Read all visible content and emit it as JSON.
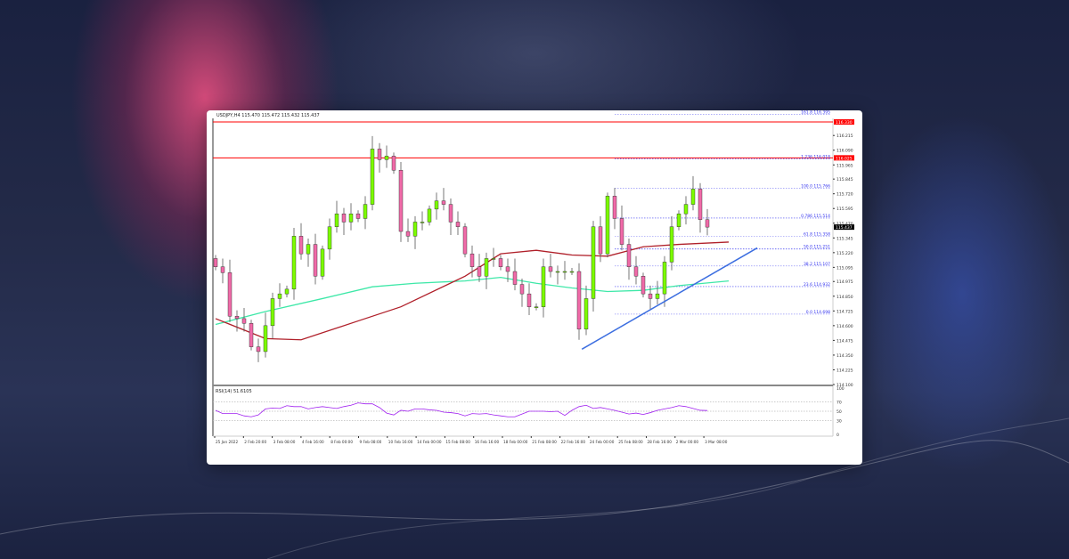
{
  "chart_data": {
    "type": "candlestick",
    "symbol_header": "USDJPY,H4  115.470 115.472 115.432 115.437",
    "close": [
      115.1,
      115.05,
      114.68,
      114.66,
      114.62,
      114.42,
      114.38,
      114.6,
      114.83,
      114.87,
      114.91,
      115.36,
      115.21,
      115.29,
      115.02,
      115.25,
      115.44,
      115.55,
      115.48,
      115.55,
      115.51,
      115.63,
      116.1,
      116.01,
      116.04,
      115.92,
      115.4,
      115.36,
      115.48,
      115.48,
      115.59,
      115.66,
      115.63,
      115.48,
      115.44,
      115.21,
      115.1,
      115.02,
      115.17,
      115.17,
      115.1,
      115.06,
      114.95,
      114.87,
      114.76,
      114.76,
      115.1,
      115.06,
      115.06,
      115.06,
      115.06,
      114.57,
      114.83,
      115.44,
      115.21,
      115.7,
      115.51,
      115.29,
      115.1,
      115.02,
      114.87,
      114.83,
      114.87,
      115.14,
      115.44,
      115.55,
      115.63,
      115.76,
      115.5,
      115.437
    ],
    "first_open": 115.17,
    "ma_red": {
      "index": [
        0,
        7,
        12,
        20,
        26,
        35,
        40,
        45,
        50,
        55,
        60,
        65,
        72
      ],
      "value": [
        114.66,
        114.49,
        114.48,
        114.64,
        114.76,
        115.02,
        115.21,
        115.24,
        115.2,
        115.19,
        115.27,
        115.29,
        115.31
      ]
    },
    "ma_green": {
      "index": [
        0,
        7,
        15,
        22,
        28,
        35,
        40,
        45,
        50,
        55,
        60,
        65,
        72
      ],
      "value": [
        114.61,
        114.72,
        114.83,
        114.93,
        114.96,
        114.98,
        115.01,
        114.96,
        114.92,
        114.89,
        114.9,
        114.94,
        114.98
      ]
    },
    "horizontal_lines": [
      {
        "price": 116.33,
        "label": "116.330",
        "color": "#ff0000"
      },
      {
        "price": 116.025,
        "label": "116.025",
        "color": "#ff0000"
      }
    ],
    "current_price": {
      "price": 115.437,
      "label": "115.437"
    },
    "fibonacci": [
      {
        "label": "161.8 116.395",
        "price": 116.395
      },
      {
        "label": "1.236 116.018",
        "price": 116.018
      },
      {
        "label": "100.0 115.766",
        "price": 115.766
      },
      {
        "label": "0.786 115.514",
        "price": 115.514
      },
      {
        "label": "61.8 115.358",
        "price": 115.358
      },
      {
        "label": "50.0 115.251",
        "price": 115.251
      },
      {
        "label": "38.2 115.107",
        "price": 115.107
      },
      {
        "label": "23.6 114.932",
        "price": 114.932
      },
      {
        "label": "0.0 114.698",
        "price": 114.698
      }
    ],
    "trendline": {
      "from": {
        "index": 51.4,
        "price": 114.4
      },
      "to": {
        "index": 76,
        "price": 115.26
      },
      "color": "#3c6ee0"
    },
    "y_ticks": [
      "116.215",
      "116.090",
      "115.965",
      "115.845",
      "115.720",
      "115.595",
      "115.470",
      "115.345",
      "115.220",
      "115.095",
      "114.975",
      "114.850",
      "114.725",
      "114.600",
      "114.475",
      "114.350",
      "114.225",
      "114.100"
    ],
    "ylim": [
      114.1,
      116.33
    ],
    "x_ticks": [
      "25 Jan 2022",
      "2 Feb 20:00",
      "3 Feb 08:00",
      "4 Feb 16:00",
      "8 Feb 00:00",
      "9 Feb 08:00",
      "10 Feb 16:00",
      "14 Feb 00:00",
      "15 Feb 08:00",
      "16 Feb 16:00",
      "18 Feb 00:00",
      "21 Feb 08:00",
      "22 Feb 16:00",
      "24 Feb 00:00",
      "25 Feb 08:00",
      "28 Feb 16:00",
      "2 Mar 00:00",
      "3 Mar 08:00"
    ],
    "rsi": {
      "label": "RSI(14) 51.6105",
      "levels": [
        70,
        50,
        30
      ],
      "axis_labels": [
        "100",
        "70",
        "50",
        "30",
        "0"
      ],
      "values": [
        52,
        45,
        45,
        45,
        40,
        38,
        42,
        55,
        57,
        56,
        62,
        60,
        60,
        55,
        58,
        60,
        58,
        56,
        60,
        63,
        68,
        66,
        66,
        58,
        46,
        42,
        52,
        50,
        55,
        55,
        53,
        52,
        48,
        47,
        45,
        40,
        45,
        44,
        45,
        42,
        40,
        38,
        38,
        44,
        50,
        50,
        50,
        49,
        50,
        41,
        52,
        60,
        63,
        56,
        58,
        55,
        52,
        48,
        44,
        46,
        43,
        47,
        52,
        55,
        58,
        62,
        60,
        56,
        52,
        51.6
      ],
      "color": "#a020f0"
    },
    "colors": {
      "bull": "#7cfc00",
      "bear": "#f06aa8",
      "fib": "#2a2af0"
    }
  }
}
